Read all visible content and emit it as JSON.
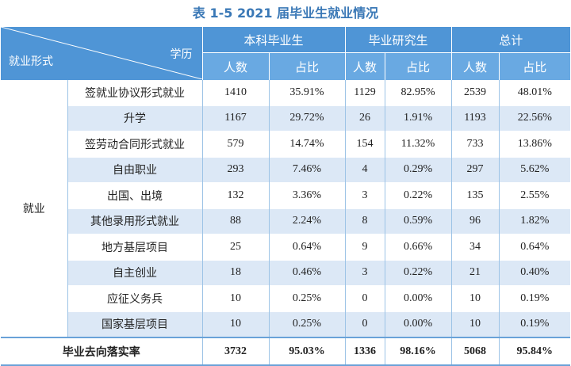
{
  "title": "表 1-5 2021 届毕业生就业情况",
  "corner": {
    "left": "就业形式",
    "right": "学历"
  },
  "groups": [
    "本科毕业生",
    "毕业研究生",
    "总计"
  ],
  "subheaders": {
    "count": "人数",
    "ratio": "占比"
  },
  "group_label": "就业",
  "rows": [
    {
      "name": "签就业协议形式就业",
      "ug_n": "1410",
      "ug_p": "35.91%",
      "pg_n": "1129",
      "pg_p": "82.95%",
      "t_n": "2539",
      "t_p": "48.01%"
    },
    {
      "name": "升学",
      "ug_n": "1167",
      "ug_p": "29.72%",
      "pg_n": "26",
      "pg_p": "1.91%",
      "t_n": "1193",
      "t_p": "22.56%"
    },
    {
      "name": "签劳动合同形式就业",
      "ug_n": "579",
      "ug_p": "14.74%",
      "pg_n": "154",
      "pg_p": "11.32%",
      "t_n": "733",
      "t_p": "13.86%"
    },
    {
      "name": "自由职业",
      "ug_n": "293",
      "ug_p": "7.46%",
      "pg_n": "4",
      "pg_p": "0.29%",
      "t_n": "297",
      "t_p": "5.62%"
    },
    {
      "name": "出国、出境",
      "ug_n": "132",
      "ug_p": "3.36%",
      "pg_n": "3",
      "pg_p": "0.22%",
      "t_n": "135",
      "t_p": "2.55%"
    },
    {
      "name": "其他录用形式就业",
      "ug_n": "88",
      "ug_p": "2.24%",
      "pg_n": "8",
      "pg_p": "0.59%",
      "t_n": "96",
      "t_p": "1.82%"
    },
    {
      "name": "地方基层项目",
      "ug_n": "25",
      "ug_p": "0.64%",
      "pg_n": "9",
      "pg_p": "0.66%",
      "t_n": "34",
      "t_p": "0.64%"
    },
    {
      "name": "自主创业",
      "ug_n": "18",
      "ug_p": "0.46%",
      "pg_n": "3",
      "pg_p": "0.22%",
      "t_n": "21",
      "t_p": "0.40%"
    },
    {
      "name": "应征义务兵",
      "ug_n": "10",
      "ug_p": "0.25%",
      "pg_n": "0",
      "pg_p": "0.00%",
      "t_n": "10",
      "t_p": "0.19%"
    },
    {
      "name": "国家基层项目",
      "ug_n": "10",
      "ug_p": "0.25%",
      "pg_n": "0",
      "pg_p": "0.00%",
      "t_n": "10",
      "t_p": "0.19%"
    }
  ],
  "total": {
    "label": "毕业去向落实率",
    "ug_n": "3732",
    "ug_p": "95.03%",
    "pg_n": "1336",
    "pg_p": "98.16%",
    "t_n": "5068",
    "t_p": "95.84%"
  },
  "colors": {
    "header": "#4f95d6",
    "subheader": "#69a9e2",
    "stripe": "#dce8f6",
    "title": "#3a78b6"
  }
}
